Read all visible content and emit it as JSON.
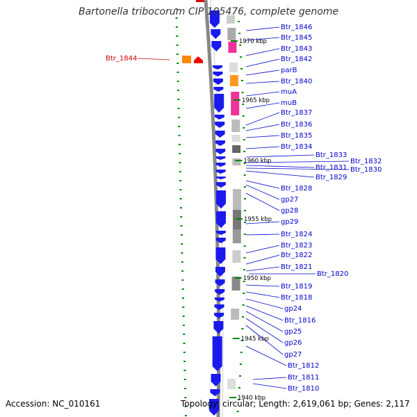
{
  "title": "Bartonella tribocorum CIP 105476, complete genome",
  "accession": "Accession: NC_010161",
  "topology": "Topology: circular; Length: 2,619,061 bp; Genes: 2,117",
  "colors": {
    "label_default": "#0000cc",
    "label_highlight": "#cc0000",
    "forward_gene": "#1a1aee",
    "ruler": "#888888",
    "tick": "#008800"
  },
  "ruler_labels": [
    "1970 kbp",
    "1965 kbp",
    "1960 kbp",
    "1955 kbp",
    "1950 kbp",
    "1945 kbp",
    "1940 kbp"
  ],
  "gene_labels": [
    {
      "text": "Btr_1846"
    },
    {
      "text": "Btr_1845"
    },
    {
      "text": "Btr_1844",
      "highlight": true
    },
    {
      "text": "Btr_1843"
    },
    {
      "text": "Btr_1842"
    },
    {
      "text": "parB"
    },
    {
      "text": "Btr_1840"
    },
    {
      "text": "muA"
    },
    {
      "text": "muB"
    },
    {
      "text": "Btr_1837"
    },
    {
      "text": "Btr_1836"
    },
    {
      "text": "Btr_1835"
    },
    {
      "text": "Btr_1834"
    },
    {
      "text": "Btr_1833"
    },
    {
      "text": "Btr_1832"
    },
    {
      "text": "Btr_1831"
    },
    {
      "text": "Btr_1830"
    },
    {
      "text": "Btr_1829"
    },
    {
      "text": "Btr_1828"
    },
    {
      "text": "gp27"
    },
    {
      "text": "gp28"
    },
    {
      "text": "gp29"
    },
    {
      "text": "Btr_1824"
    },
    {
      "text": "Btr_1823"
    },
    {
      "text": "Btr_1822"
    },
    {
      "text": "Btr_1821"
    },
    {
      "text": "Btr_1820"
    },
    {
      "text": "Btr_1819"
    },
    {
      "text": "Btr_1818"
    },
    {
      "text": "gp24"
    },
    {
      "text": "Btr_1816"
    },
    {
      "text": "gp25"
    },
    {
      "text": "gp26"
    },
    {
      "text": "gp27"
    },
    {
      "text": "Btr_1812"
    },
    {
      "text": "Btr_1811"
    },
    {
      "text": "Btr_1810"
    }
  ]
}
